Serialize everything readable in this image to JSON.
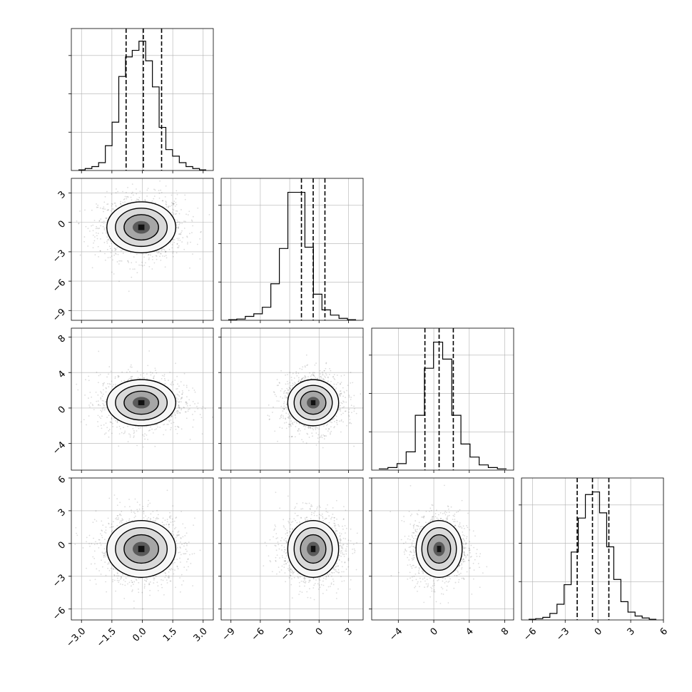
{
  "chart_data": {
    "type": "corner",
    "params": [
      {
        "range": [
          -3.5,
          3.5
        ],
        "ticks": [
          -3.0,
          -1.5,
          0.0,
          1.5,
          3.0
        ],
        "tick_labels": [
          "−3.0",
          "−1.5",
          "0.0",
          "1.5",
          "3.0"
        ],
        "quantiles": [
          -0.8,
          0.05,
          0.95
        ],
        "hist": [
          0.005,
          0.015,
          0.03,
          0.06,
          0.19,
          0.37,
          0.72,
          0.87,
          0.92,
          0.99,
          0.84,
          0.64,
          0.33,
          0.16,
          0.11,
          0.06,
          0.03,
          0.015,
          0.005
        ]
      },
      {
        "range": [
          -10,
          4.5
        ],
        "ticks": [
          -9,
          -6,
          -3,
          0,
          3
        ],
        "tick_labels": [
          "−9",
          "−6",
          "−3",
          "0",
          "3"
        ],
        "quantiles": [
          -1.8,
          -0.6,
          0.6
        ],
        "hist": [
          0.005,
          0.01,
          0.03,
          0.05,
          0.1,
          0.28,
          0.55,
          0.98,
          0.98,
          0.56,
          0.2,
          0.08,
          0.04,
          0.015,
          0.005
        ]
      },
      {
        "range": [
          -7,
          9
        ],
        "ticks": [
          -4,
          0,
          4,
          8
        ],
        "tick_labels": [
          "−4",
          "0",
          "4",
          "8"
        ],
        "quantiles": [
          -1.0,
          0.6,
          2.2
        ],
        "hist": [
          0.01,
          0.02,
          0.05,
          0.14,
          0.42,
          0.78,
          0.98,
          0.85,
          0.42,
          0.2,
          0.1,
          0.04,
          0.02,
          0.01
        ]
      },
      {
        "range": [
          -7,
          6
        ],
        "ticks": [
          -6,
          -3,
          0,
          3,
          6
        ],
        "tick_labels": [
          "−6",
          "−3",
          "0",
          "3",
          "6"
        ],
        "quantiles": [
          -1.9,
          -0.5,
          1.0
        ],
        "hist": [
          0.005,
          0.01,
          0.02,
          0.05,
          0.12,
          0.27,
          0.52,
          0.78,
          0.96,
          0.98,
          0.82,
          0.56,
          0.31,
          0.14,
          0.06,
          0.03,
          0.015,
          0.005
        ]
      }
    ],
    "pairs": [
      {
        "row": 1,
        "col": 0,
        "cx": -0.05,
        "cy": -0.5,
        "sx": 0.85,
        "sy": 1.3
      },
      {
        "row": 2,
        "col": 0,
        "cx": -0.05,
        "cy": 0.6,
        "sx": 0.85,
        "sy": 1.3
      },
      {
        "row": 2,
        "col": 1,
        "cx": -0.6,
        "cy": 0.6,
        "sx": 1.3,
        "sy": 1.3
      },
      {
        "row": 3,
        "col": 0,
        "cx": -0.05,
        "cy": -0.5,
        "sx": 0.85,
        "sy": 1.3
      },
      {
        "row": 3,
        "col": 1,
        "cx": -0.6,
        "cy": -0.5,
        "sx": 1.3,
        "sy": 1.3
      },
      {
        "row": 3,
        "col": 2,
        "cx": 0.6,
        "cy": -0.5,
        "sx": 1.3,
        "sy": 1.3
      }
    ],
    "contour_levels_sigma": [
      0.5,
      1.0,
      1.5,
      2.0
    ],
    "grid": true,
    "title": "",
    "xlabel": "",
    "ylabel": "",
    "colors": {
      "line": "#000000",
      "grid": "#b0b0b0",
      "points": "#000000"
    }
  }
}
